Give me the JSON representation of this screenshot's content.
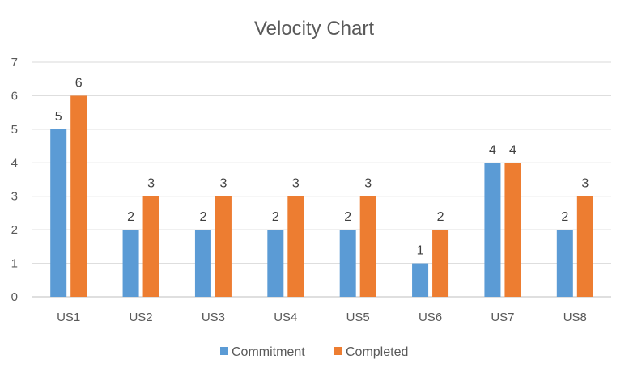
{
  "chart_data": {
    "type": "bar",
    "title": "Velocity Chart",
    "xlabel": "",
    "ylabel": "",
    "categories": [
      "US1",
      "US2",
      "US3",
      "US4",
      "US5",
      "US6",
      "US7",
      "US8"
    ],
    "series": [
      {
        "name": "Commitment",
        "values": [
          5,
          2,
          2,
          2,
          2,
          1,
          4,
          2
        ],
        "color": "#5b9bd5"
      },
      {
        "name": "Completed",
        "values": [
          6,
          3,
          3,
          3,
          3,
          2,
          4,
          3
        ],
        "color": "#ed7d31"
      }
    ],
    "ylim": [
      0,
      7
    ],
    "yticks": [
      "0",
      "1",
      "2",
      "3",
      "4",
      "5",
      "6",
      "7"
    ],
    "grid": true,
    "data_labels": true,
    "legend_position": "bottom"
  }
}
